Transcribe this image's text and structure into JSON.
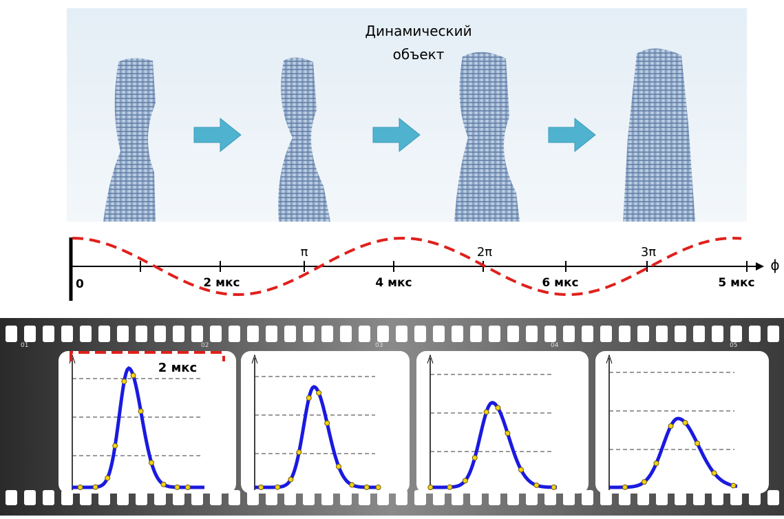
{
  "title": {
    "line1": "Динамический",
    "line2": "объект"
  },
  "axis": {
    "origin": "0",
    "labels": [
      "2 мкс",
      "4 мкс",
      "6 мкс",
      "5 мкс"
    ],
    "phase_labels": [
      "π",
      "2π",
      "3π"
    ],
    "phi": "ϕ"
  },
  "film": {
    "frame_numbers": [
      "01",
      "02",
      "03",
      "04",
      "05"
    ],
    "width_label": "2 мкс"
  }
}
